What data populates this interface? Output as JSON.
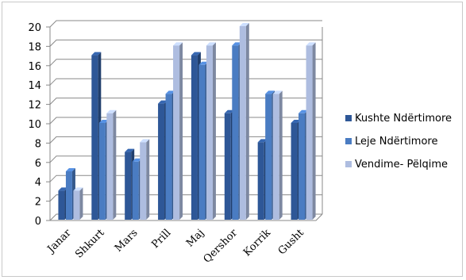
{
  "chart_data": {
    "type": "bar",
    "title": "",
    "xlabel": "",
    "ylabel": "",
    "ylim": [
      0,
      20
    ],
    "yticks": [
      0,
      2,
      4,
      6,
      8,
      10,
      12,
      14,
      16,
      18,
      20
    ],
    "grid": true,
    "legend_position": "right",
    "style": "3d-clustered-column",
    "categories": [
      "Janar",
      "Shkurt",
      "Mars",
      "Prill",
      "Maj",
      "Qershor",
      "Korrik",
      "Gusht"
    ],
    "series": [
      {
        "name": "Kushte Ndërtimore",
        "color": "#2e5797",
        "values": [
          3,
          17,
          7,
          12,
          17,
          11,
          8,
          10
        ]
      },
      {
        "name": "Leje Ndërtimore",
        "color": "#4a7cc2",
        "values": [
          5,
          10,
          6,
          13,
          16,
          18,
          13,
          11
        ]
      },
      {
        "name": "Vendime- Pëlqime",
        "color": "#aebde0",
        "values": [
          3,
          11,
          8,
          18,
          18,
          20,
          13,
          18
        ]
      }
    ]
  }
}
